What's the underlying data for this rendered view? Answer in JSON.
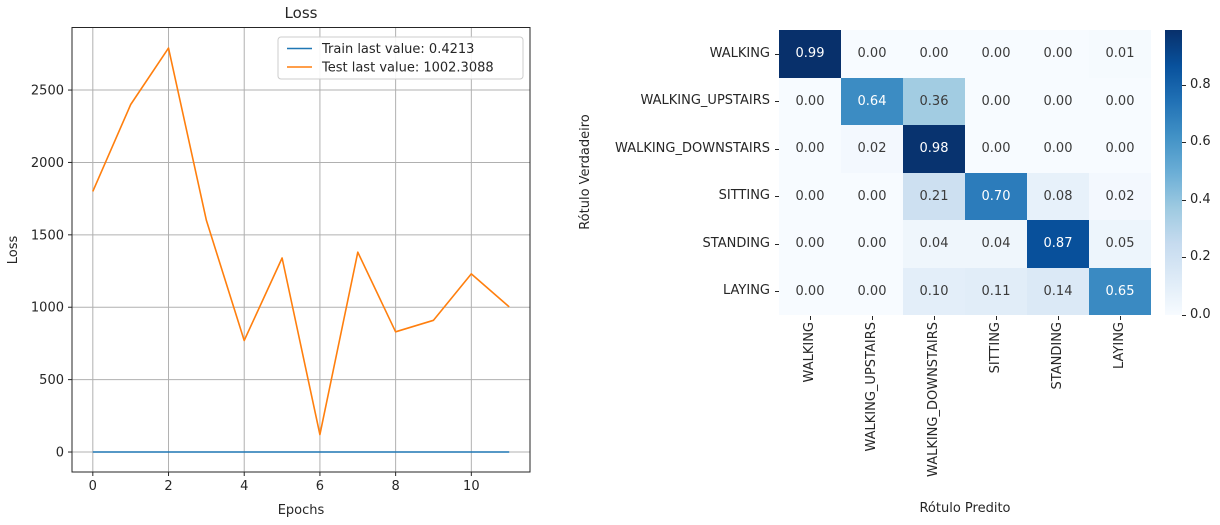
{
  "figure": {
    "background": "#ffffff"
  },
  "chart_data": [
    {
      "type": "line",
      "title": "Loss",
      "xlabel": "Epochs",
      "ylabel": "Loss",
      "x": [
        0,
        1,
        2,
        3,
        4,
        5,
        6,
        7,
        8,
        9,
        10,
        11
      ],
      "series": [
        {
          "name": "Train last value: 0.4213",
          "color": "#1f77b4",
          "values": [
            0.4213,
            0.4213,
            0.4213,
            0.4213,
            0.4213,
            0.4213,
            0.4213,
            0.4213,
            0.4213,
            0.4213,
            0.4213,
            0.4213
          ]
        },
        {
          "name": "Test last value: 1002.3088",
          "color": "#ff7f0e",
          "values": [
            1800,
            2400,
            2790,
            1600,
            770,
            1340,
            120,
            1380,
            830,
            910,
            1230,
            1002.3088
          ]
        }
      ],
      "xticks": [
        0,
        2,
        4,
        6,
        8,
        10
      ],
      "yticks": [
        0,
        500,
        1000,
        1500,
        2000,
        2500
      ],
      "xlim": [
        -0.55,
        11.55
      ],
      "ylim": [
        -138,
        2932
      ],
      "grid": true,
      "legend_position": "upper right",
      "grid_color": "#b0b0b0",
      "spine_color": "#262626"
    },
    {
      "type": "heatmap",
      "title": "",
      "xlabel": "Rótulo Predito",
      "ylabel": "Rótulo Verdadeiro",
      "categories": [
        "WALKING",
        "WALKING_UPSTAIRS",
        "WALKING_DOWNSTAIRS",
        "SITTING",
        "STANDING",
        "LAYING"
      ],
      "matrix": [
        [
          0.99,
          0.0,
          0.0,
          0.0,
          0.0,
          0.01
        ],
        [
          0.0,
          0.64,
          0.36,
          0.0,
          0.0,
          0.0
        ],
        [
          0.0,
          0.02,
          0.98,
          0.0,
          0.0,
          0.0
        ],
        [
          0.0,
          0.0,
          0.21,
          0.7,
          0.08,
          0.02
        ],
        [
          0.0,
          0.0,
          0.04,
          0.04,
          0.87,
          0.05
        ],
        [
          0.0,
          0.0,
          0.1,
          0.11,
          0.14,
          0.65
        ]
      ],
      "value_format": "2dp",
      "colormap": "Blues",
      "vmin": 0.0,
      "vmax": 0.99,
      "colorbar_ticks": [
        0.0,
        0.2,
        0.4,
        0.6,
        0.8
      ],
      "grid": false,
      "legend_position": "colorbar-right"
    }
  ]
}
